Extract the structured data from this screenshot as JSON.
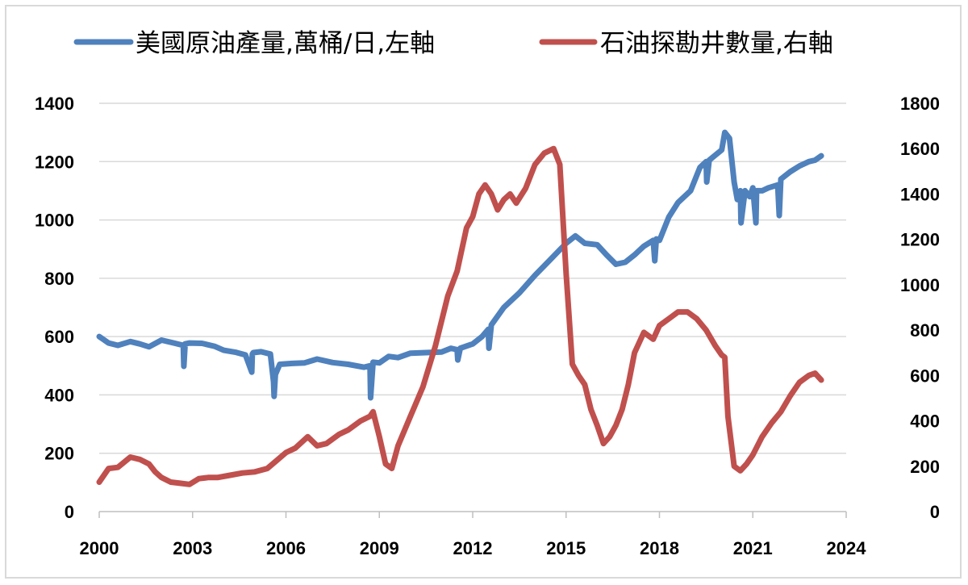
{
  "chart_data": {
    "type": "line",
    "title": "",
    "legend": {
      "placement": "top",
      "entries": [
        "美國原油產量,萬桶/日,左軸",
        "石油探勘井數量,右軸"
      ]
    },
    "x_axis": {
      "type": "year",
      "range": [
        2000,
        2024
      ],
      "tick_labels": [
        "2000",
        "2003",
        "2006",
        "2009",
        "2012",
        "2015",
        "2018",
        "2021",
        "2024"
      ],
      "tick_values": [
        2000,
        2003,
        2006,
        2009,
        2012,
        2015,
        2018,
        2021,
        2024
      ]
    },
    "y_left": {
      "range": [
        0,
        1400
      ],
      "tick_labels": [
        "0",
        "200",
        "400",
        "600",
        "800",
        "1000",
        "1200",
        "1400"
      ],
      "tick_values": [
        0,
        200,
        400,
        600,
        800,
        1000,
        1200,
        1400
      ]
    },
    "y_right": {
      "range": [
        0,
        1800
      ],
      "tick_labels": [
        "0",
        "200",
        "400",
        "600",
        "800",
        "1000",
        "1200",
        "1400",
        "1600",
        "1800"
      ],
      "tick_values": [
        0,
        200,
        400,
        600,
        800,
        1000,
        1200,
        1400,
        1600,
        1800
      ]
    },
    "grid": "horizontal",
    "series": [
      {
        "name": "美國原油產量,萬桶/日,左軸",
        "axis": "left",
        "color": "#4f81bd",
        "x": [
          2000.0,
          2000.3,
          2000.6,
          2001.0,
          2001.3,
          2001.6,
          2002.0,
          2002.4,
          2002.7,
          2002.72,
          2002.76,
          2002.9,
          2003.3,
          2003.7,
          2004.0,
          2004.4,
          2004.7,
          2004.9,
          2004.92,
          2004.95,
          2005.2,
          2005.5,
          2005.6,
          2005.62,
          2005.66,
          2005.8,
          2006.2,
          2006.6,
          2007.0,
          2007.5,
          2008.0,
          2008.5,
          2008.7,
          2008.72,
          2008.8,
          2009.0,
          2009.3,
          2009.6,
          2010.0,
          2010.5,
          2011.0,
          2011.3,
          2011.5,
          2011.52,
          2011.6,
          2012.0,
          2012.3,
          2012.5,
          2012.52,
          2012.6,
          2013.0,
          2013.5,
          2014.0,
          2014.5,
          2015.0,
          2015.3,
          2015.6,
          2016.0,
          2016.3,
          2016.6,
          2016.9,
          2017.2,
          2017.5,
          2017.8,
          2017.85,
          2017.9,
          2018.0,
          2018.3,
          2018.6,
          2019.0,
          2019.3,
          2019.5,
          2019.52,
          2019.6,
          2020.0,
          2020.1,
          2020.25,
          2020.4,
          2020.5,
          2020.6,
          2020.62,
          2020.75,
          2020.9,
          2021.0,
          2021.1,
          2021.12,
          2021.3,
          2021.5,
          2021.8,
          2021.85,
          2021.9,
          2022.2,
          2022.5,
          2022.8,
          2023.0,
          2023.2
        ],
        "y": [
          600,
          578,
          570,
          583,
          575,
          565,
          588,
          578,
          570,
          498,
          575,
          578,
          577,
          567,
          553,
          546,
          537,
          478,
          540,
          545,
          548,
          540,
          445,
          395,
          470,
          505,
          508,
          510,
          523,
          511,
          505,
          495,
          500,
          390,
          512,
          510,
          532,
          528,
          543,
          545,
          547,
          560,
          555,
          520,
          560,
          575,
          600,
          625,
          560,
          640,
          700,
          750,
          810,
          865,
          920,
          945,
          920,
          915,
          880,
          848,
          855,
          880,
          910,
          930,
          860,
          935,
          930,
          1010,
          1060,
          1100,
          1180,
          1200,
          1130,
          1205,
          1240,
          1300,
          1280,
          1130,
          1070,
          1100,
          990,
          1100,
          1080,
          1110,
          990,
          1100,
          1100,
          1110,
          1120,
          1015,
          1140,
          1165,
          1185,
          1200,
          1205,
          1220
        ]
      },
      {
        "name": "石油探勘井數量,右軸",
        "axis": "right",
        "color": "#c0504d",
        "x": [
          2000.0,
          2000.3,
          2000.6,
          2001.0,
          2001.3,
          2001.6,
          2001.8,
          2002.0,
          2002.3,
          2002.6,
          2002.9,
          2003.2,
          2003.5,
          2003.8,
          2004.2,
          2004.6,
          2005.0,
          2005.4,
          2005.7,
          2006.0,
          2006.3,
          2006.7,
          2007.0,
          2007.3,
          2007.7,
          2008.0,
          2008.4,
          2008.7,
          2008.8,
          2009.0,
          2009.2,
          2009.4,
          2009.6,
          2010.0,
          2010.4,
          2010.8,
          2011.2,
          2011.5,
          2011.8,
          2012.0,
          2012.2,
          2012.4,
          2012.6,
          2012.8,
          2013.0,
          2013.2,
          2013.4,
          2013.7,
          2014.0,
          2014.3,
          2014.6,
          2014.8,
          2015.0,
          2015.2,
          2015.4,
          2015.6,
          2015.8,
          2016.0,
          2016.2,
          2016.4,
          2016.6,
          2016.8,
          2017.0,
          2017.2,
          2017.5,
          2017.8,
          2018.0,
          2018.3,
          2018.6,
          2018.9,
          2019.2,
          2019.5,
          2019.8,
          2020.0,
          2020.1,
          2020.2,
          2020.4,
          2020.6,
          2020.8,
          2021.0,
          2021.3,
          2021.6,
          2021.9,
          2022.2,
          2022.5,
          2022.8,
          2023.0,
          2023.2
        ],
        "y": [
          130,
          190,
          195,
          240,
          230,
          210,
          175,
          150,
          130,
          125,
          120,
          145,
          150,
          150,
          160,
          170,
          175,
          190,
          225,
          260,
          280,
          330,
          290,
          300,
          340,
          360,
          400,
          420,
          440,
          330,
          210,
          190,
          290,
          420,
          550,
          730,
          950,
          1060,
          1250,
          1300,
          1400,
          1440,
          1400,
          1330,
          1375,
          1400,
          1360,
          1425,
          1530,
          1580,
          1600,
          1530,
          1050,
          650,
          600,
          560,
          450,
          380,
          300,
          330,
          380,
          450,
          560,
          700,
          790,
          760,
          820,
          850,
          880,
          880,
          850,
          800,
          730,
          690,
          680,
          420,
          200,
          180,
          210,
          250,
          330,
          390,
          440,
          510,
          570,
          600,
          610,
          580
        ]
      }
    ]
  }
}
